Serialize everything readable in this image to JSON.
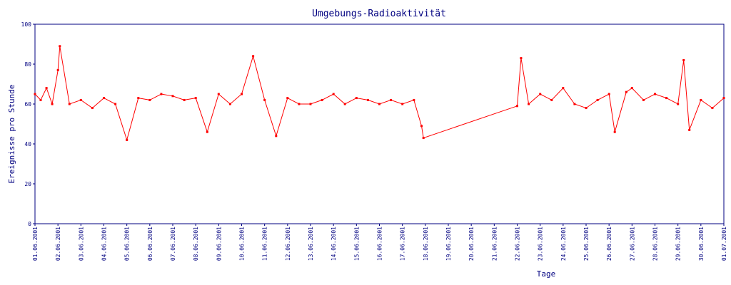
{
  "chart_data": {
    "type": "line",
    "title": "Umgebungs-Radioaktivität",
    "xlabel": "Tage",
    "ylabel": "Ereignisse pro Stunde",
    "ylim": [
      0,
      100
    ],
    "yticks": [
      0,
      20,
      40,
      60,
      80,
      100
    ],
    "grid": false,
    "x_range_days": [
      "01.06.2001",
      "30.06.2001"
    ],
    "xticks": [
      "01.06.2001",
      "02.06.2001",
      "03.06.2001",
      "04.06.2001",
      "05.06.2001",
      "06.06.2001",
      "07.06.2001",
      "08.06.2001",
      "09.06.2001",
      "10.06.2001",
      "11.06.2001",
      "12.06.2001",
      "13.06.2001",
      "14.06.2001",
      "15.06.2001",
      "16.06.2001",
      "17.06.2001",
      "18.06.2001",
      "19.06.2001",
      "20.06.2001",
      "21.06.2001",
      "22.06.2001",
      "23.06.2001",
      "24.06.2001",
      "25.06.2001",
      "26.06.2001",
      "27.06.2001",
      "28.06.2001",
      "29.06.2001",
      "30.06.2001",
      "01.07.2001"
    ],
    "colors": {
      "series": "#ff0000",
      "axes": "#000080"
    },
    "series": [
      {
        "name": "",
        "x_unit": "days",
        "segments_note": "",
        "points": [
          {
            "x": "01.06.2001",
            "y": 65
          },
          {
            "x": "01.06.2001 06h",
            "y": 62
          },
          {
            "x": "01.06.2001 12h",
            "y": 68
          },
          {
            "x": "01.06.2001 18h",
            "y": 60
          },
          {
            "x": "02.06.2001",
            "y": 77
          },
          {
            "x": "02.06.2001 02h",
            "y": 89
          },
          {
            "x": "02.06.2001 12h",
            "y": 60
          },
          {
            "x": "03.06.2001",
            "y": 62
          },
          {
            "x": "03.06.2001 12h",
            "y": 58
          },
          {
            "x": "04.06.2001",
            "y": 63
          },
          {
            "x": "04.06.2001 12h",
            "y": 60
          },
          {
            "x": "05.06.2001",
            "y": 42
          },
          {
            "x": "05.06.2001 12h",
            "y": 63
          },
          {
            "x": "06.06.2001",
            "y": 62
          },
          {
            "x": "06.06.2001 12h",
            "y": 65
          },
          {
            "x": "07.06.2001",
            "y": 64
          },
          {
            "x": "07.06.2001 12h",
            "y": 62
          },
          {
            "x": "08.06.2001",
            "y": 63
          },
          {
            "x": "08.06.2001 12h",
            "y": 46
          },
          {
            "x": "09.06.2001",
            "y": 65
          },
          {
            "x": "09.06.2001 12h",
            "y": 60
          },
          {
            "x": "10.06.2001",
            "y": 65
          },
          {
            "x": "10.06.2001 12h",
            "y": 84
          },
          {
            "x": "11.06.2001",
            "y": 62
          },
          {
            "x": "11.06.2001 12h",
            "y": 44
          },
          {
            "x": "12.06.2001",
            "y": 63
          },
          {
            "x": "12.06.2001 12h",
            "y": 60
          },
          {
            "x": "13.06.2001",
            "y": 60
          },
          {
            "x": "13.06.2001 12h",
            "y": 62
          },
          {
            "x": "14.06.2001",
            "y": 65
          },
          {
            "x": "14.06.2001 12h",
            "y": 60
          },
          {
            "x": "15.06.2001",
            "y": 63
          },
          {
            "x": "15.06.2001 12h",
            "y": 62
          },
          {
            "x": "16.06.2001",
            "y": 60
          },
          {
            "x": "16.06.2001 12h",
            "y": 62
          },
          {
            "x": "17.06.2001",
            "y": 60
          },
          {
            "x": "17.06.2001 12h",
            "y": 62
          },
          {
            "x": "17.06.2001 20h",
            "y": 49
          },
          {
            "x": "17.06.2001 22h",
            "y": 43
          },
          {
            "x": "22.06.2001",
            "y": 59
          },
          {
            "x": "22.06.2001 04h",
            "y": 83
          },
          {
            "x": "22.06.2001 12h",
            "y": 60
          },
          {
            "x": "23.06.2001",
            "y": 65
          },
          {
            "x": "23.06.2001 12h",
            "y": 62
          },
          {
            "x": "24.06.2001",
            "y": 68
          },
          {
            "x": "24.06.2001 12h",
            "y": 60
          },
          {
            "x": "25.06.2001",
            "y": 58
          },
          {
            "x": "25.06.2001 12h",
            "y": 62
          },
          {
            "x": "26.06.2001",
            "y": 65
          },
          {
            "x": "26.06.2001 06h",
            "y": 46
          },
          {
            "x": "26.06.2001 18h",
            "y": 66
          },
          {
            "x": "27.06.2001",
            "y": 68
          },
          {
            "x": "27.06.2001 12h",
            "y": 62
          },
          {
            "x": "28.06.2001",
            "y": 65
          },
          {
            "x": "28.06.2001 12h",
            "y": 63
          },
          {
            "x": "29.06.2001",
            "y": 60
          },
          {
            "x": "29.06.2001 06h",
            "y": 82
          },
          {
            "x": "29.06.2001 12h",
            "y": 47
          },
          {
            "x": "30.06.2001",
            "y": 62
          },
          {
            "x": "30.06.2001 12h",
            "y": 58
          },
          {
            "x": "01.07.2001",
            "y": 63
          }
        ]
      }
    ]
  }
}
